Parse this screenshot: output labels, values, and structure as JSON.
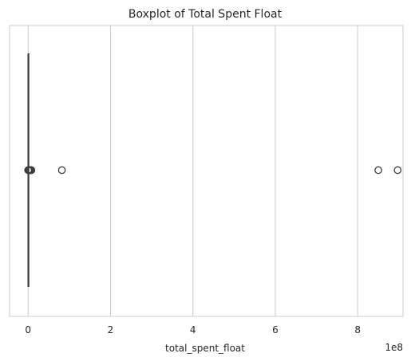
{
  "chart_data": {
    "type": "boxplot",
    "orientation": "horizontal",
    "title": "Boxplot of Total Spent Float",
    "xlabel": "total_spent_float",
    "ylabel": "",
    "x_offset_label": "1e8",
    "xlim": [
      -0.45,
      9.1
    ],
    "xticks": [
      0,
      2,
      4,
      6,
      8
    ],
    "xtick_labels": [
      "0",
      "2",
      "4",
      "6",
      "8"
    ],
    "grid": "x",
    "legend": "none",
    "scale": 100000000,
    "box": {
      "whisker_low": 0,
      "q1": 0,
      "median": 0,
      "q3": 0.005,
      "whisker_high": 0.01
    },
    "outliers": [
      0.0,
      0.01,
      0.02,
      0.03,
      0.05,
      0.07,
      0.08,
      0.82,
      8.5,
      8.97
    ],
    "colors": {
      "box_edge": "#3d3d3d",
      "grid": "#cccccc",
      "frame": "#cccccc",
      "outlier_edge": "#3d3d3d"
    }
  }
}
